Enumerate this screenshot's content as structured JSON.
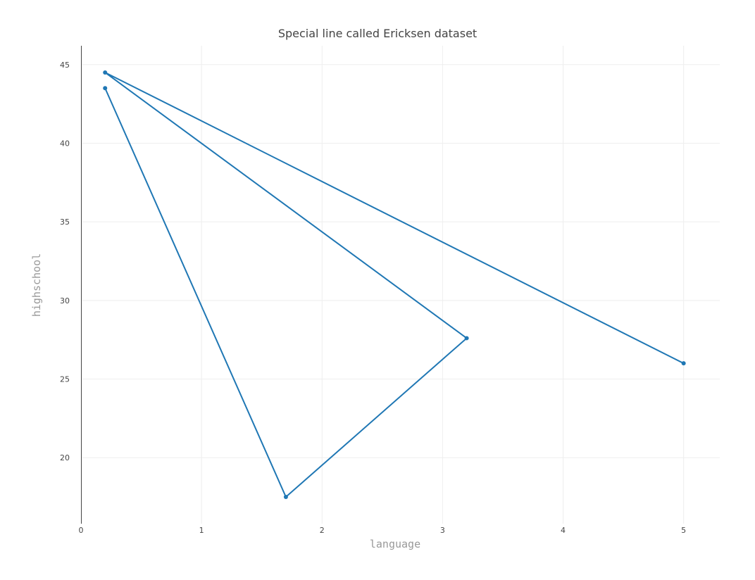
{
  "chart_data": {
    "type": "line",
    "title": "Special line called Ericksen dataset",
    "xlabel": "language",
    "ylabel": "highschool",
    "xlim": [
      0,
      5.3
    ],
    "ylim": [
      15.8,
      46.2
    ],
    "xticks": [
      "0",
      "1",
      "2",
      "3",
      "4",
      "5"
    ],
    "yticks": [
      "20",
      "25",
      "30",
      "35",
      "40",
      "45"
    ],
    "grid": true,
    "line_color": "#1f77b4",
    "series": [
      {
        "x": [
          0.2,
          1.7,
          3.2,
          0.2,
          5.0
        ],
        "y": [
          43.5,
          17.5,
          27.6,
          44.5,
          26.0
        ]
      }
    ]
  }
}
